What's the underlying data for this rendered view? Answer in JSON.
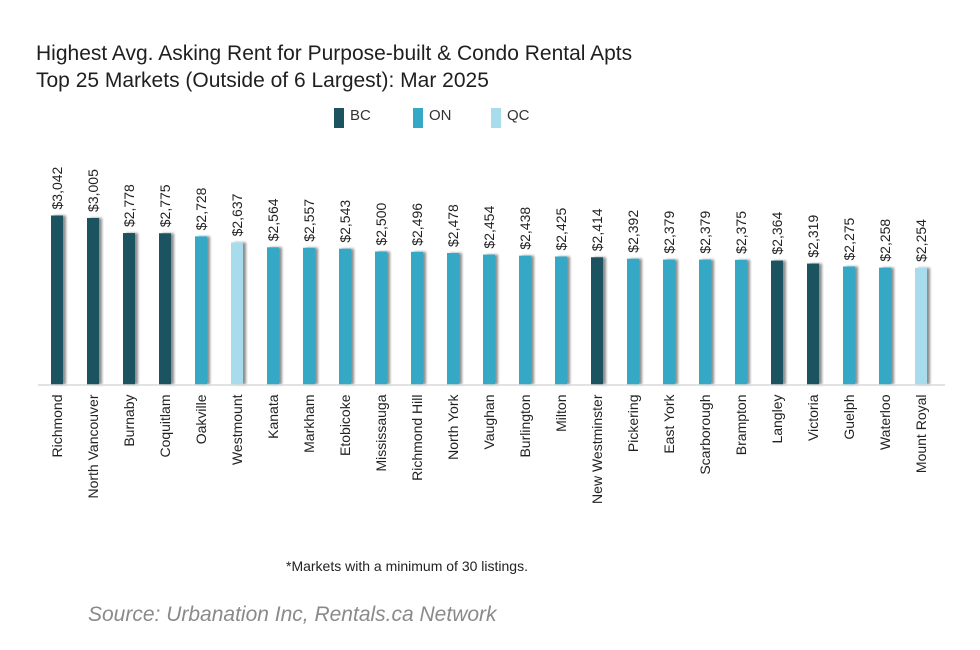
{
  "chart_data": {
    "type": "bar",
    "title": "Highest Avg. Asking Rent for Purpose-built & Condo Rental Apts",
    "subtitle": "Top 25 Markets (Outside of 6 Largest): Mar 2025",
    "xlabel": "",
    "ylabel": "",
    "ylim": [
      500,
      3100
    ],
    "grid": false,
    "legend_position": "top-center",
    "legend": [
      {
        "key": "BC",
        "label": "BC",
        "color": "#1d5361"
      },
      {
        "key": "ON",
        "label": "ON",
        "color": "#35a8c6"
      },
      {
        "key": "QC",
        "label": "QC",
        "color": "#a8dcec"
      }
    ],
    "categories": [
      "Richmond",
      "North Vancouver",
      "Burnaby",
      "Coquitlam",
      "Oakville",
      "Westmount",
      "Kanata",
      "Markham",
      "Etobicoke",
      "Mississauga",
      "Richmond Hill",
      "North York",
      "Vaughan",
      "Burlington",
      "Milton",
      "New Westminster",
      "Pickering",
      "East York",
      "Scarborough",
      "Brampton",
      "Langley",
      "Victoria",
      "Guelph",
      "Waterloo",
      "Mount Royal"
    ],
    "values": [
      3042,
      3005,
      2778,
      2775,
      2728,
      2637,
      2564,
      2557,
      2543,
      2500,
      2496,
      2478,
      2454,
      2438,
      2425,
      2414,
      2392,
      2379,
      2379,
      2375,
      2364,
      2319,
      2275,
      2258,
      2254
    ],
    "value_labels": [
      "$3,042",
      "$3,005",
      "$2,778",
      "$2,775",
      "$2,728",
      "$2,637",
      "$2,564",
      "$2,557",
      "$2,543",
      "$2,500",
      "$2,496",
      "$2,478",
      "$2,454",
      "$2,438",
      "$2,425",
      "$2,414",
      "$2,392",
      "$2,379",
      "$2,379",
      "$2,375",
      "$2,364",
      "$2,319",
      "$2,275",
      "$2,258",
      "$2,254"
    ],
    "province": [
      "BC",
      "BC",
      "BC",
      "BC",
      "ON",
      "QC",
      "ON",
      "ON",
      "ON",
      "ON",
      "ON",
      "ON",
      "ON",
      "ON",
      "ON",
      "BC",
      "ON",
      "ON",
      "ON",
      "ON",
      "BC",
      "BC",
      "ON",
      "ON",
      "QC"
    ]
  },
  "footnote": "*Markets with a minimum of 30 listings.",
  "source": "Source: Urbanation Inc, Rentals.ca Network"
}
